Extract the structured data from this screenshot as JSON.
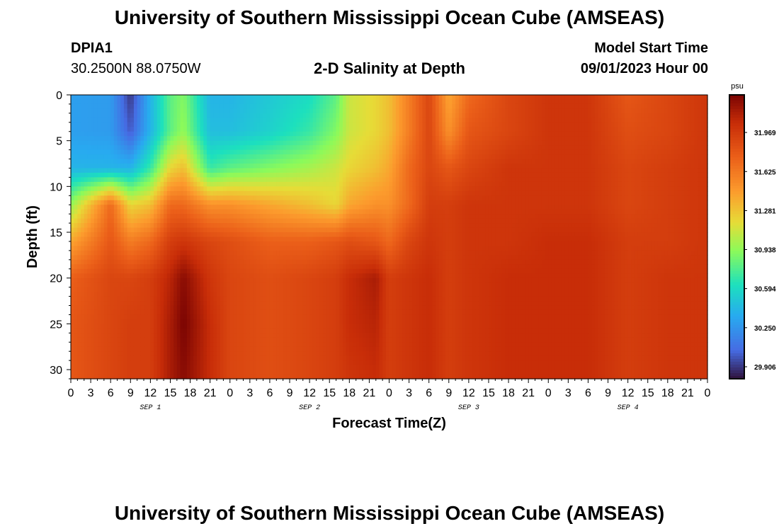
{
  "header": {
    "title": "University of Southern Mississippi Ocean Cube (AMSEAS)",
    "station_id": "DPIA1",
    "station_coords": "30.2500N  88.0750W",
    "plot_title": "2-D Salinity at Depth",
    "model_start_label": "Model Start Time",
    "model_start_value": "09/01/2023 Hour 00"
  },
  "footer": {
    "title": "University of Southern Mississippi Ocean Cube (AMSEAS)"
  },
  "chart_data": {
    "type": "heatmap",
    "title": "2-D Salinity at Depth",
    "xlabel": "Forecast Time(Z)",
    "ylabel": "Depth (ft)",
    "xlim": [
      0,
      96
    ],
    "ylim": [
      31,
      0
    ],
    "x_tick_labels": [
      "0",
      "3",
      "6",
      "9",
      "12",
      "15",
      "18",
      "21",
      "0",
      "3",
      "6",
      "9",
      "12",
      "15",
      "18",
      "21",
      "0",
      "3",
      "6",
      "9",
      "12",
      "15",
      "18",
      "21",
      "0",
      "3",
      "6",
      "9",
      "12",
      "15",
      "18",
      "21",
      "0"
    ],
    "day_labels": [
      "SEP 1",
      "SEP 2",
      "SEP 3",
      "SEP 4"
    ],
    "y_ticks": [
      0,
      5,
      10,
      15,
      20,
      25,
      30
    ],
    "colorbar": {
      "unit": "psu",
      "tick_labels": [
        "31.969",
        "31.625",
        "31.281",
        "30.938",
        "30.594",
        "30.250",
        "29.906"
      ],
      "range": [
        29.8,
        32.3
      ]
    },
    "x_hours": [
      0,
      6,
      9,
      12,
      15,
      17,
      21,
      24,
      30,
      36,
      40,
      42,
      46,
      48,
      51,
      54,
      57,
      60,
      66,
      72,
      78,
      84,
      90,
      96
    ],
    "depths_ft": [
      0,
      4,
      8,
      12,
      16,
      20,
      25,
      31
    ],
    "salinity_psu": [
      [
        30.3,
        30.28,
        29.9,
        30.4,
        30.8,
        30.9,
        30.4,
        30.4,
        30.5,
        30.6,
        30.8,
        31.1,
        31.2,
        31.3,
        31.6,
        31.9,
        31.4,
        31.7,
        31.9,
        32.0,
        32.0,
        31.8,
        31.9,
        32.0
      ],
      [
        30.3,
        30.28,
        30.0,
        30.4,
        30.8,
        30.95,
        30.45,
        30.45,
        30.55,
        30.7,
        30.9,
        31.1,
        31.2,
        31.3,
        31.6,
        31.9,
        31.5,
        31.8,
        31.9,
        32.0,
        32.0,
        31.85,
        31.9,
        32.0
      ],
      [
        30.4,
        30.4,
        30.4,
        30.7,
        31.2,
        31.3,
        30.7,
        30.8,
        30.9,
        31.0,
        31.1,
        31.2,
        31.3,
        31.4,
        31.7,
        31.9,
        31.8,
        31.9,
        32.0,
        32.0,
        32.0,
        31.9,
        31.95,
        32.0
      ],
      [
        30.95,
        31.7,
        31.2,
        31.3,
        31.7,
        31.7,
        31.5,
        31.5,
        31.4,
        31.3,
        31.2,
        31.4,
        31.5,
        31.5,
        31.7,
        31.95,
        31.95,
        32.0,
        32.0,
        32.0,
        32.0,
        31.9,
        31.95,
        32.0
      ],
      [
        31.4,
        31.8,
        31.6,
        31.7,
        31.95,
        32.0,
        31.9,
        31.85,
        31.75,
        31.75,
        31.8,
        31.85,
        31.8,
        31.7,
        31.9,
        32.0,
        31.95,
        32.0,
        32.0,
        32.05,
        32.05,
        31.95,
        31.95,
        32.0
      ],
      [
        31.75,
        31.9,
        31.9,
        31.95,
        32.1,
        32.25,
        32.0,
        31.9,
        31.85,
        31.9,
        31.95,
        32.05,
        32.15,
        31.95,
        32.0,
        32.05,
        31.95,
        32.0,
        32.05,
        32.05,
        32.05,
        31.95,
        32.0,
        32.0
      ],
      [
        31.8,
        31.9,
        31.95,
        31.95,
        32.15,
        32.3,
        32.05,
        31.9,
        31.85,
        31.9,
        31.95,
        32.05,
        32.1,
        31.95,
        32.0,
        32.05,
        31.95,
        32.0,
        32.05,
        32.05,
        32.05,
        31.95,
        32.0,
        32.0
      ],
      [
        31.8,
        31.9,
        31.95,
        31.95,
        32.15,
        32.25,
        32.05,
        31.9,
        31.85,
        31.9,
        31.95,
        32.0,
        32.05,
        31.95,
        32.0,
        32.05,
        31.95,
        32.0,
        32.05,
        32.05,
        32.05,
        31.95,
        32.0,
        32.0
      ]
    ]
  }
}
